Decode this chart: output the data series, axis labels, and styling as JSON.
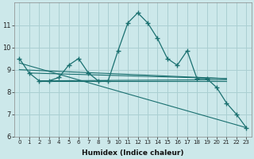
{
  "xlabel": "Humidex (Indice chaleur)",
  "bg_color": "#cce8ea",
  "grid_color": "#aacfd2",
  "line_color": "#1a7070",
  "x_values": [
    0,
    1,
    2,
    3,
    4,
    5,
    6,
    7,
    8,
    9,
    10,
    11,
    12,
    13,
    14,
    15,
    16,
    17,
    18,
    19,
    20,
    21,
    22,
    23
  ],
  "main_line": [
    9.5,
    8.85,
    8.5,
    8.5,
    8.65,
    9.2,
    9.5,
    8.85,
    8.5,
    8.5,
    9.85,
    11.1,
    11.55,
    11.1,
    10.4,
    9.5,
    9.2,
    9.85,
    8.6,
    8.6,
    8.2,
    7.5,
    7.0,
    6.4
  ],
  "trend_lines": [
    {
      "x": [
        0,
        21
      ],
      "y": [
        9.0,
        8.6
      ]
    },
    {
      "x": [
        1,
        21
      ],
      "y": [
        8.85,
        8.6
      ]
    },
    {
      "x": [
        2,
        21
      ],
      "y": [
        8.5,
        8.55
      ]
    },
    {
      "x": [
        2,
        21
      ],
      "y": [
        8.5,
        8.5
      ]
    }
  ],
  "descend_line": {
    "x": [
      0,
      23
    ],
    "y": [
      9.3,
      6.4
    ]
  },
  "ylim": [
    6.0,
    12.0
  ],
  "xlim": [
    -0.5,
    23.5
  ],
  "yticks": [
    6,
    7,
    8,
    9,
    10,
    11
  ],
  "xticks": [
    0,
    1,
    2,
    3,
    4,
    5,
    6,
    7,
    8,
    9,
    10,
    11,
    12,
    13,
    14,
    15,
    16,
    17,
    18,
    19,
    20,
    21,
    22,
    23
  ]
}
